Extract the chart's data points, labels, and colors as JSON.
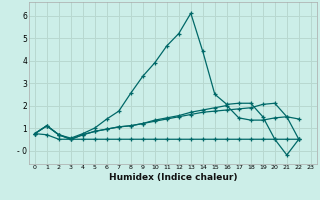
{
  "xlabel": "Humidex (Indice chaleur)",
  "background_color": "#cceee8",
  "grid_color": "#b8d8d0",
  "line_color": "#006868",
  "xlim": [
    -0.5,
    23.5
  ],
  "ylim": [
    -0.6,
    6.6
  ],
  "xticks": [
    0,
    1,
    2,
    3,
    4,
    5,
    6,
    7,
    8,
    9,
    10,
    11,
    12,
    13,
    14,
    15,
    16,
    17,
    18,
    19,
    20,
    21,
    22,
    23
  ],
  "yticks": [
    0,
    1,
    2,
    3,
    4,
    5,
    6
  ],
  "ytick_labels": [
    "- 0",
    "1",
    "2",
    "3",
    "4",
    "5",
    "6"
  ],
  "x": [
    0,
    1,
    2,
    3,
    4,
    5,
    6,
    7,
    8,
    9,
    10,
    11,
    12,
    13,
    14,
    15,
    16,
    17,
    18,
    19,
    20,
    21,
    22
  ],
  "series": [
    [
      0.75,
      1.1,
      0.7,
      0.5,
      0.7,
      0.85,
      0.95,
      1.05,
      1.1,
      1.2,
      1.3,
      1.4,
      1.5,
      1.6,
      1.7,
      1.75,
      1.8,
      1.85,
      1.9,
      2.05,
      2.1,
      1.5,
      0.5
    ],
    [
      0.75,
      1.1,
      0.7,
      0.55,
      0.75,
      1.0,
      1.4,
      1.75,
      2.55,
      3.3,
      3.9,
      4.65,
      5.2,
      6.1,
      4.4,
      2.5,
      2.05,
      2.1,
      2.1,
      1.5,
      0.5,
      -0.2,
      0.5
    ],
    [
      0.75,
      1.1,
      0.7,
      0.5,
      0.7,
      0.85,
      0.95,
      1.05,
      1.1,
      1.2,
      1.35,
      1.45,
      1.55,
      1.7,
      1.8,
      1.9,
      2.0,
      1.45,
      1.35,
      1.35,
      1.45,
      1.5,
      1.4
    ],
    [
      0.75,
      0.7,
      0.5,
      0.5,
      0.5,
      0.5,
      0.5,
      0.5,
      0.5,
      0.5,
      0.5,
      0.5,
      0.5,
      0.5,
      0.5,
      0.5,
      0.5,
      0.5,
      0.5,
      0.5,
      0.5,
      0.5,
      0.5
    ]
  ]
}
